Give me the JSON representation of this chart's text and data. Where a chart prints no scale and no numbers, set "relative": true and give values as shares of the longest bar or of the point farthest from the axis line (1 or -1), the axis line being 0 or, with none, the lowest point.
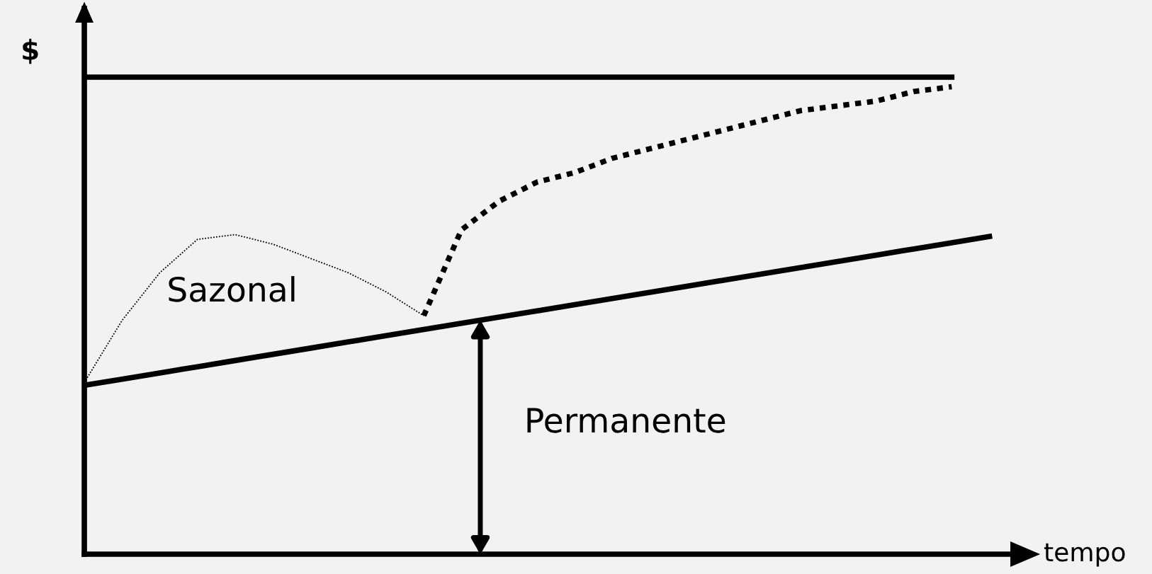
{
  "chart_data": {
    "type": "line",
    "relative": true,
    "xlabel": "tempo",
    "ylabel": "$",
    "legend": false,
    "marker": "none",
    "categories": [
      null,
      null,
      null,
      null,
      null,
      null,
      null,
      null,
      null,
      null,
      null,
      null,
      null,
      null,
      null,
      null,
      null,
      null,
      null,
      null,
      null,
      null,
      null,
      null,
      null
    ],
    "series": [
      {
        "color": "#000000",
        "line_style": "solid",
        "values": [
          1,
          1,
          1,
          1,
          1,
          1,
          1,
          1,
          1,
          1,
          1,
          1,
          1,
          1,
          1,
          1,
          1,
          1,
          1,
          1,
          1,
          1,
          1,
          1,
          null
        ]
      },
      {
        "color": "#000000",
        "line_style": "solid",
        "values": [
          0.354,
          0.367,
          0.38,
          0.393,
          0.406,
          0.419,
          0.432,
          0.445,
          0.458,
          0.471,
          0.484,
          0.497,
          0.51,
          0.523,
          0.536,
          0.549,
          0.562,
          0.575,
          0.588,
          0.601,
          0.614,
          0.627,
          0.64,
          0.653,
          0.666
        ]
      },
      {
        "color": "#000000",
        "line_style": "dotted",
        "values": [
          0.36,
          0.49,
          0.59,
          0.66,
          0.67,
          0.65,
          0.62,
          0.59,
          0.55,
          0.5,
          null,
          null,
          null,
          null,
          null,
          null,
          null,
          null,
          null,
          null,
          null,
          null,
          null,
          null,
          null
        ]
      },
      {
        "color": "#000000",
        "line_style": "dashed",
        "values": [
          null,
          null,
          null,
          null,
          null,
          null,
          null,
          null,
          null,
          0.5,
          0.68,
          0.74,
          0.78,
          0.8,
          0.83,
          0.85,
          0.87,
          0.89,
          0.91,
          0.93,
          0.94,
          0.95,
          0.97,
          0.98,
          null
        ]
      }
    ],
    "annotations": [
      "Sazonal",
      "Permanente"
    ]
  }
}
